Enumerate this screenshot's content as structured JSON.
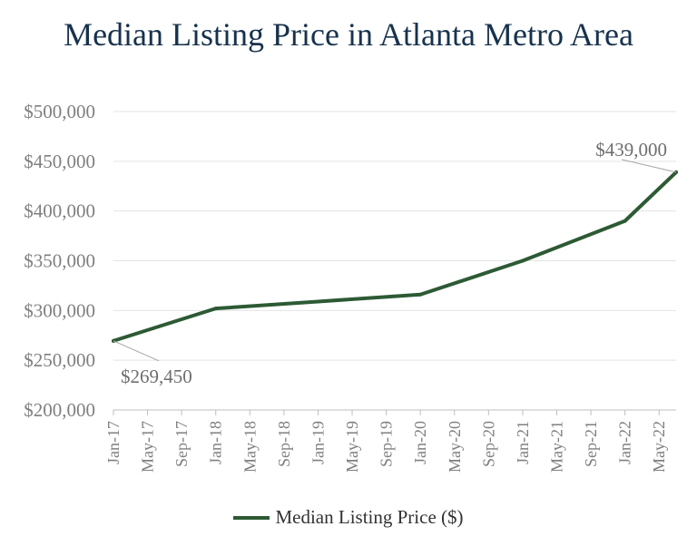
{
  "chart_data": {
    "type": "line",
    "title": "Median Listing Price in Atlanta Metro Area",
    "categories": [
      "Jan-17",
      "May-17",
      "Sep-17",
      "Jan-18",
      "May-18",
      "Sep-18",
      "Jan-19",
      "May-19",
      "Sep-19",
      "Jan-20",
      "May-20",
      "Sep-20",
      "Jan-21",
      "May-21",
      "Sep-21",
      "Jan-22",
      "May-22"
    ],
    "series": [
      {
        "name": "Median Listing Price ($)",
        "color": "#2d5a34",
        "x": [
          "Jan-17",
          "Jan-18",
          "Jan-19",
          "Jan-20",
          "Jan-21",
          "Jan-22",
          "Jul-22"
        ],
        "values": [
          269450,
          302000,
          309000,
          316000,
          350000,
          390000,
          439000
        ]
      }
    ],
    "ylim": [
      200000,
      500000
    ],
    "y_ticks": [
      "$200,000",
      "$250,000",
      "$300,000",
      "$350,000",
      "$400,000",
      "$450,000",
      "$500,000"
    ],
    "annotations": [
      {
        "text": "$269,450",
        "point": "first"
      },
      {
        "text": "$439,000",
        "point": "last"
      }
    ],
    "grid": true,
    "legend": "bottom"
  }
}
